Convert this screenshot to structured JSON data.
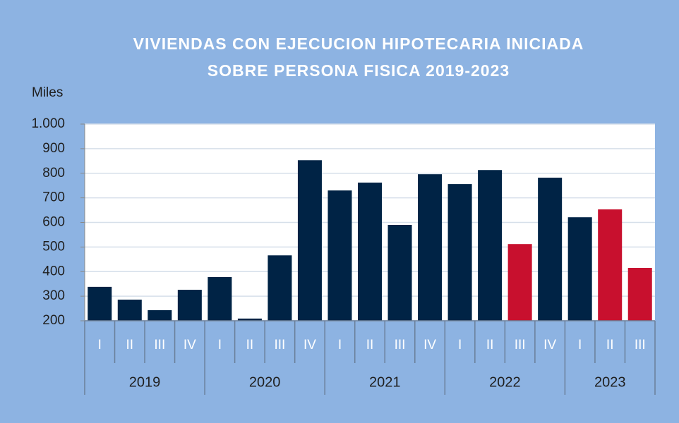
{
  "chart_data": {
    "type": "bar",
    "title": [
      "VIVIENDAS CON EJECUCION HIPOTECARIA INICIADA",
      "SOBRE PERSONA FISICA 2019-2023"
    ],
    "y_label": "Miles",
    "categories": [
      "I",
      "II",
      "III",
      "IV",
      "I",
      "II",
      "III",
      "IV",
      "I",
      "II",
      "III",
      "IV",
      "I",
      "II",
      "III",
      "IV",
      "I",
      "II",
      "III"
    ],
    "years": [
      "2019",
      "2020",
      "2021",
      "2022",
      "2023"
    ],
    "values": [
      338,
      286,
      243,
      326,
      378,
      209,
      466,
      853,
      730,
      762,
      590,
      796,
      756,
      813,
      512,
      782,
      621,
      653,
      415
    ],
    "colors": [
      "#002345",
      "#002345",
      "#002345",
      "#002345",
      "#002345",
      "#002345",
      "#002345",
      "#002345",
      "#002345",
      "#002345",
      "#002345",
      "#002345",
      "#002345",
      "#002345",
      "#c8102e",
      "#002345",
      "#002345",
      "#c8102e",
      "#c8102e"
    ],
    "ylim": [
      200,
      1000
    ],
    "yticks": [
      200,
      300,
      400,
      500,
      600,
      700,
      800,
      900,
      {
        "value": 1000,
        "label": "1.000"
      }
    ],
    "grid": true
  }
}
